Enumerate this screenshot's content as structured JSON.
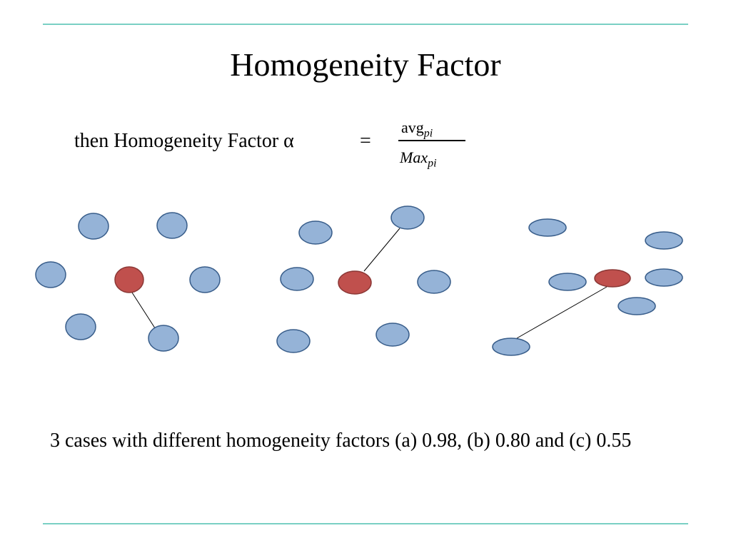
{
  "title": "Homogeneity Factor",
  "formula": {
    "lead": "then Homogeneity Factor α",
    "equals": "=",
    "numerator": {
      "base": "avg",
      "subscript": "pi"
    },
    "denominator": {
      "base": "Max",
      "subscript": "pi"
    }
  },
  "caption": "3 cases with different homogeneity factors (a) 0.98, (b) 0.80 and (c) 0.55"
}
